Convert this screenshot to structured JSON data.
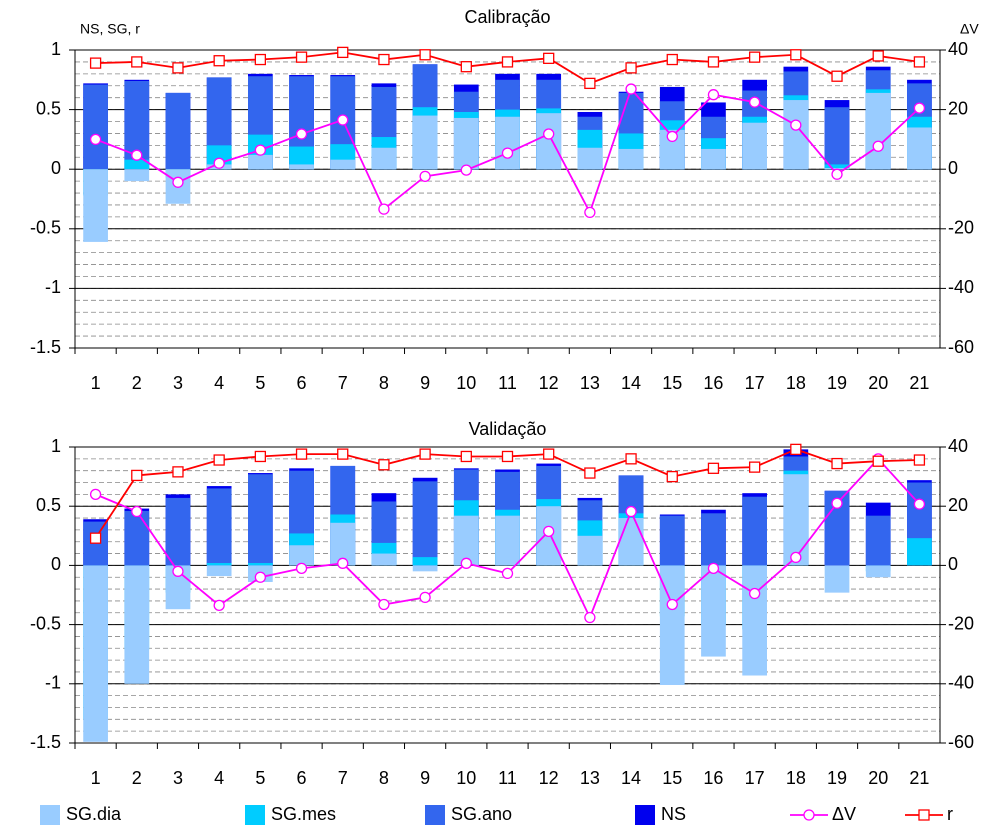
{
  "chart_data": [
    {
      "type": "bar",
      "title": "Calibração",
      "y_label": "NS, SG, r",
      "y2_label": "ΔV",
      "categories": [
        "1",
        "2",
        "3",
        "4",
        "5",
        "6",
        "7",
        "8",
        "9",
        "10",
        "11",
        "12",
        "13",
        "14",
        "15",
        "16",
        "17",
        "18",
        "19",
        "20",
        "21"
      ],
      "series": [
        {
          "name": "SG.dia",
          "color": "#99ccff",
          "values": [
            -0.61,
            -0.1,
            -0.29,
            0.04,
            0.12,
            0.04,
            0.08,
            0.18,
            0.45,
            0.43,
            0.44,
            0.47,
            0.18,
            0.17,
            0.33,
            0.17,
            0.39,
            0.58,
            0.01,
            0.64,
            0.35
          ]
        },
        {
          "name": "SG.mes",
          "color": "#00ccff",
          "values": [
            -0.22,
            0.08,
            -0.07,
            0.2,
            0.29,
            0.19,
            0.21,
            0.27,
            0.52,
            0.48,
            0.5,
            0.51,
            0.33,
            0.3,
            0.41,
            0.26,
            0.44,
            0.62,
            0.04,
            0.67,
            0.44
          ]
        },
        {
          "name": "SG.ano",
          "color": "#3366ee",
          "values": [
            0.71,
            0.74,
            0.64,
            0.77,
            0.78,
            0.78,
            0.78,
            0.69,
            0.88,
            0.65,
            0.75,
            0.75,
            0.44,
            0.64,
            0.57,
            0.44,
            0.66,
            0.82,
            0.52,
            0.83,
            0.72
          ]
        },
        {
          "name": "NS",
          "color": "#0000ee",
          "values": [
            0.72,
            0.75,
            0.64,
            0.77,
            0.8,
            0.79,
            0.79,
            0.72,
            0.88,
            0.71,
            0.8,
            0.8,
            0.48,
            0.65,
            0.69,
            0.56,
            0.75,
            0.86,
            0.58,
            0.86,
            0.75
          ]
        },
        {
          "name": "ΔV",
          "color": "#ff00ff",
          "type": "line",
          "marker": "circle",
          "axis": "y2",
          "values": [
            10,
            4.7,
            -4.4,
            2,
            6.4,
            11.8,
            16.5,
            -13.4,
            -2.4,
            -0.3,
            5.4,
            11.8,
            -14.5,
            26.9,
            11,
            25,
            22.5,
            14.8,
            -1.7,
            7.7,
            20.5
          ]
        },
        {
          "name": "r",
          "color": "#ff0000",
          "type": "line",
          "marker": "square",
          "values": [
            0.89,
            0.9,
            0.85,
            0.91,
            0.92,
            0.94,
            0.98,
            0.92,
            0.96,
            0.86,
            0.9,
            0.93,
            0.72,
            0.85,
            0.92,
            0.9,
            0.94,
            0.96,
            0.78,
            0.95,
            0.9
          ]
        }
      ],
      "ylim": [
        -1.5,
        1
      ],
      "yticks": [
        -1.5,
        -1,
        -0.5,
        0,
        0.5,
        1
      ],
      "y2lim": [
        -60,
        40
      ],
      "y2ticks": [
        -60,
        -40,
        -20,
        0,
        20,
        40
      ],
      "grid": true,
      "grid_minor_step": 0.1
    },
    {
      "type": "bar",
      "title": "Validação",
      "categories": [
        "1",
        "2",
        "3",
        "4",
        "5",
        "6",
        "7",
        "8",
        "9",
        "10",
        "11",
        "12",
        "13",
        "14",
        "15",
        "16",
        "17",
        "18",
        "19",
        "20",
        "21"
      ],
      "series": [
        {
          "name": "SG.dia",
          "color": "#99ccff",
          "values": [
            -1.49,
            -1.0,
            -0.37,
            -0.09,
            -0.14,
            0.17,
            0.36,
            0.1,
            -0.05,
            0.42,
            0.42,
            0.5,
            0.25,
            0.4,
            -1.01,
            -0.77,
            -0.93,
            0.77,
            -0.23,
            -0.1,
            0.0
          ]
        },
        {
          "name": "SG.mes",
          "color": "#00ccff",
          "values": [
            -1.3,
            -0.71,
            -0.23,
            0.02,
            0.02,
            0.27,
            0.43,
            0.19,
            0.07,
            0.55,
            0.47,
            0.56,
            0.38,
            0.44,
            -0.43,
            -0.5,
            -0.54,
            0.8,
            0.0,
            -0.05,
            0.23
          ]
        },
        {
          "name": "SG.ano",
          "color": "#3366ee",
          "values": [
            0.37,
            0.46,
            0.57,
            0.65,
            0.77,
            0.8,
            0.84,
            0.54,
            0.71,
            0.81,
            0.79,
            0.84,
            0.55,
            0.76,
            0.42,
            0.44,
            0.58,
            0.92,
            0.63,
            0.42,
            0.7
          ]
        },
        {
          "name": "NS",
          "color": "#0000ee",
          "values": [
            0.39,
            0.48,
            0.6,
            0.67,
            0.78,
            0.82,
            0.84,
            0.61,
            0.74,
            0.82,
            0.81,
            0.86,
            0.57,
            0.76,
            0.43,
            0.47,
            0.61,
            0.98,
            0.63,
            0.53,
            0.72
          ]
        },
        {
          "name": "ΔV",
          "color": "#ff00ff",
          "type": "line",
          "marker": "circle",
          "axis": "y2",
          "values": [
            24,
            18.2,
            -2,
            -13.5,
            -4,
            -1,
            0.7,
            -13.2,
            -10.8,
            0.7,
            -2.7,
            11.5,
            -17.6,
            18.2,
            -13.2,
            -1,
            -9.5,
            2.7,
            21,
            36,
            20.7
          ]
        },
        {
          "name": "r",
          "color": "#ff0000",
          "type": "line",
          "marker": "square",
          "values": [
            0.23,
            0.76,
            0.79,
            0.89,
            0.92,
            0.94,
            0.94,
            0.85,
            0.94,
            0.92,
            0.92,
            0.94,
            0.78,
            0.9,
            0.75,
            0.82,
            0.83,
            0.98,
            0.86,
            0.88,
            0.89
          ]
        }
      ],
      "ylim": [
        -1.5,
        1
      ],
      "yticks": [
        -1.5,
        -1,
        -0.5,
        0,
        0.5,
        1
      ],
      "y2lim": [
        -60,
        40
      ],
      "y2ticks": [
        -60,
        -40,
        -20,
        0,
        20,
        40
      ],
      "grid": true,
      "grid_minor_step": 0.1,
      "legend": "bottom"
    }
  ]
}
